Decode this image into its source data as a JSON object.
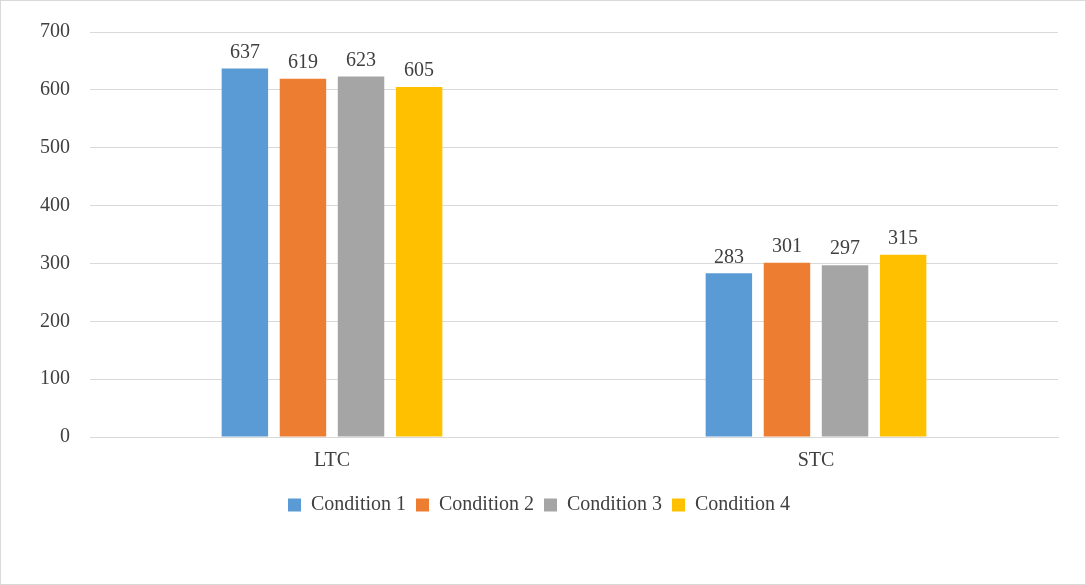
{
  "chart_data": {
    "type": "bar",
    "categories": [
      "LTC",
      "STC"
    ],
    "series": [
      {
        "name": "Condition 1",
        "color": "#5b9bd5",
        "values": [
          637,
          283
        ]
      },
      {
        "name": "Condition 2",
        "color": "#ed7d31",
        "values": [
          619,
          301
        ]
      },
      {
        "name": "Condition 3",
        "color": "#a5a5a5",
        "values": [
          623,
          297
        ]
      },
      {
        "name": "Condition 4",
        "color": "#ffc000",
        "values": [
          605,
          315
        ]
      }
    ],
    "ylim": [
      0,
      700
    ],
    "yticks": [
      0,
      100,
      200,
      300,
      400,
      500,
      600,
      700
    ],
    "grid": "y",
    "legend": "bottom",
    "data_labels": true
  }
}
